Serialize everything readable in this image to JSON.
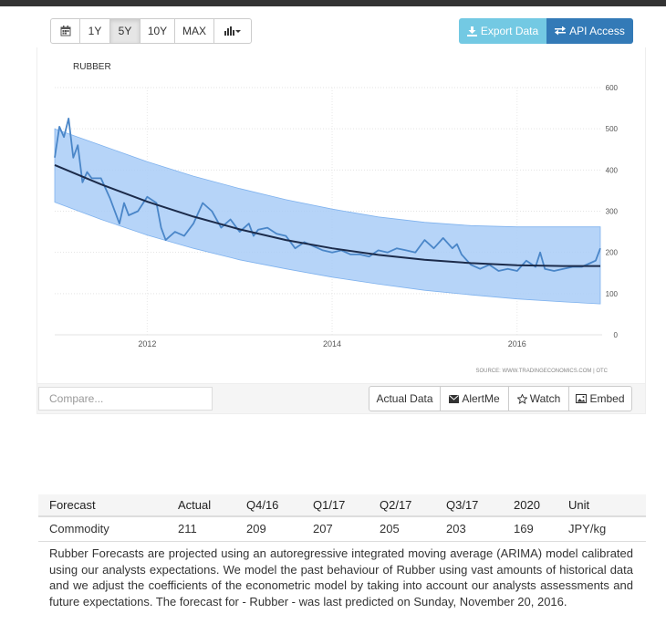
{
  "range_buttons": [
    "1Y",
    "5Y",
    "10Y",
    "MAX"
  ],
  "range_active": "5Y",
  "export_label": "Export Data",
  "api_label": "API Access",
  "compare_placeholder": "Compare...",
  "tools": {
    "actual_data": "Actual Data",
    "alert": "AlertMe",
    "watch": "Watch",
    "embed": "Embed"
  },
  "chart_data": {
    "type": "line",
    "title": "RUBBER",
    "source": "SOURCE: WWW.TRADINGECONOMICS.COM | OTC",
    "x_ticks": [
      "2012",
      "2014",
      "2016"
    ],
    "y_ticks": [
      0,
      100,
      200,
      300,
      400,
      500,
      600
    ],
    "ylim": [
      0,
      600
    ],
    "xlim": [
      2011.0,
      2016.92
    ],
    "series": [
      {
        "name": "",
        "x": [
          2011.0,
          2011.05,
          2011.1,
          2011.15,
          2011.2,
          2011.25,
          2011.3,
          2011.35,
          2011.4,
          2011.5,
          2011.6,
          2011.7,
          2011.75,
          2011.8,
          2011.9,
          2012.0,
          2012.1,
          2012.15,
          2012.2,
          2012.3,
          2012.4,
          2012.5,
          2012.6,
          2012.7,
          2012.8,
          2012.9,
          2013.0,
          2013.1,
          2013.15,
          2013.2,
          2013.3,
          2013.4,
          2013.5,
          2013.6,
          2013.7,
          2013.8,
          2013.9,
          2014.0,
          2014.1,
          2014.2,
          2014.3,
          2014.4,
          2014.5,
          2014.6,
          2014.7,
          2014.8,
          2014.9,
          2015.0,
          2015.1,
          2015.2,
          2015.3,
          2015.35,
          2015.4,
          2015.5,
          2015.6,
          2015.7,
          2015.8,
          2015.9,
          2016.0,
          2016.1,
          2016.2,
          2016.25,
          2016.3,
          2016.4,
          2016.5,
          2016.6,
          2016.7,
          2016.8,
          2016.85,
          2016.9
        ],
        "values": [
          430,
          505,
          480,
          525,
          430,
          460,
          370,
          395,
          380,
          380,
          330,
          270,
          320,
          290,
          300,
          335,
          320,
          260,
          230,
          250,
          240,
          270,
          320,
          300,
          260,
          280,
          250,
          270,
          240,
          255,
          260,
          245,
          240,
          210,
          225,
          215,
          205,
          200,
          205,
          195,
          195,
          190,
          205,
          200,
          210,
          205,
          200,
          230,
          210,
          235,
          210,
          220,
          195,
          170,
          160,
          170,
          155,
          160,
          155,
          180,
          165,
          200,
          160,
          155,
          160,
          165,
          165,
          175,
          180,
          210
        ]
      }
    ],
    "trend": {
      "x": [
        2011.0,
        2011.5,
        2012.0,
        2012.5,
        2013.0,
        2013.5,
        2014.0,
        2014.5,
        2015.0,
        2015.5,
        2016.0,
        2016.5,
        2016.9
      ],
      "values": [
        412,
        365,
        323,
        287,
        256,
        230,
        210,
        194,
        182,
        174,
        169,
        167,
        167
      ]
    },
    "band_upper": {
      "x": [
        2011.0,
        2011.5,
        2012.0,
        2012.5,
        2013.0,
        2013.5,
        2014.0,
        2014.5,
        2015.0,
        2015.5,
        2016.0,
        2016.5,
        2016.9
      ],
      "values": [
        500,
        460,
        420,
        385,
        355,
        328,
        305,
        286,
        273,
        265,
        262,
        262,
        262
      ]
    },
    "band_lower": {
      "x": [
        2011.0,
        2011.5,
        2012.0,
        2012.5,
        2013.0,
        2013.5,
        2014.0,
        2014.5,
        2015.0,
        2015.5,
        2016.0,
        2016.5,
        2016.9
      ],
      "values": [
        322,
        280,
        242,
        210,
        182,
        160,
        140,
        123,
        108,
        97,
        87,
        80,
        75
      ]
    },
    "colors": {
      "line": "#4a86c8",
      "trend": "#1c2b4a",
      "band": "#a9cdf7",
      "band_edge": "#7fb2ee"
    }
  },
  "table": {
    "headers": [
      "Forecast",
      "Actual",
      "Q4/16",
      "Q1/17",
      "Q2/17",
      "Q3/17",
      "2020",
      "Unit"
    ],
    "row": [
      "Commodity",
      "211",
      "209",
      "207",
      "205",
      "203",
      "169",
      "JPY/kg"
    ]
  },
  "description": "Rubber Forecasts are projected using an autoregressive integrated moving average (ARIMA) model calibrated using our analysts expectations. We model the past behaviour of Rubber using vast amounts of historical data and we adjust the coefficients of the econometric model by taking into account our analysts assessments and future expectations. The forecast for - Rubber - was last predicted on Sunday, November 20, 2016."
}
